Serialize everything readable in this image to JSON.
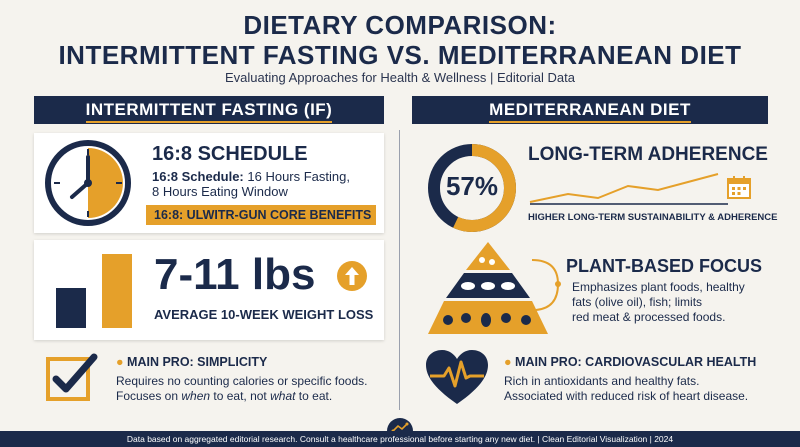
{
  "header": {
    "title_line1": "DIETARY COMPARISON:",
    "title_line2": "INTERMITTENT FASTING VS. MEDITERRANEAN DIET",
    "subtitle": "Evaluating Approaches for Health & Wellness | Editorial Data"
  },
  "left": {
    "band": "INTERMITTENT FASTING (IF)",
    "schedule": {
      "title": "16:8 SCHEDULE",
      "desc_bold": "16:8 Schedule:",
      "desc_rest": " 16 Hours Fasting,",
      "desc_line2": "8 Hours Eating Window",
      "banner": "16:8: ULWITR-GUN CORE BENEFITS",
      "icon": "clock-icon"
    },
    "weight": {
      "value": "7-11 lbs",
      "label": "AVERAGE 10-WEEK WEIGHT LOSS",
      "icon": "arrow-up-icon"
    },
    "pro": {
      "label": "MAIN PRO: SIMPLICITY",
      "line1": "Requires no counting calories or specific foods.",
      "line2_a": "Focuses on ",
      "line2_b": "when",
      "line2_c": " to eat, not ",
      "line2_d": "what",
      "line2_e": " to eat.",
      "icon": "checkbox-icon"
    }
  },
  "right": {
    "band": "MEDITERRANEAN DIET",
    "adherence": {
      "percent": "57%",
      "percent_value": 57,
      "title": "LONG-TERM ADHERENCE",
      "caption": "HIGHER LONG-TERM SUSTAINABILITY & ADHERENCE",
      "icon": "calendar-icon"
    },
    "plant": {
      "title": "PLANT-BASED FOCUS",
      "line1": "Emphasizes plant foods, healthy",
      "line2": "fats (olive oil), fish; limits",
      "line3": "red meat & processed foods.",
      "icon": "food-pyramid-icon"
    },
    "pro": {
      "label": "MAIN PRO: CARDIOVASCULAR HEALTH",
      "line1": "Rich in antioxidants and healthy fats.",
      "line2": "Associated with reduced risk of heart disease.",
      "icon": "heart-pulse-icon"
    }
  },
  "footer": {
    "text": "Data based on aggregated editorial research. Consult a healthcare professional before starting any new diet. | Clean Editorial Visualization | 2024",
    "icon": "trend-icon"
  },
  "colors": {
    "navy": "#1b2a4a",
    "gold": "#e5a02a",
    "background": "#f5f3ee"
  }
}
